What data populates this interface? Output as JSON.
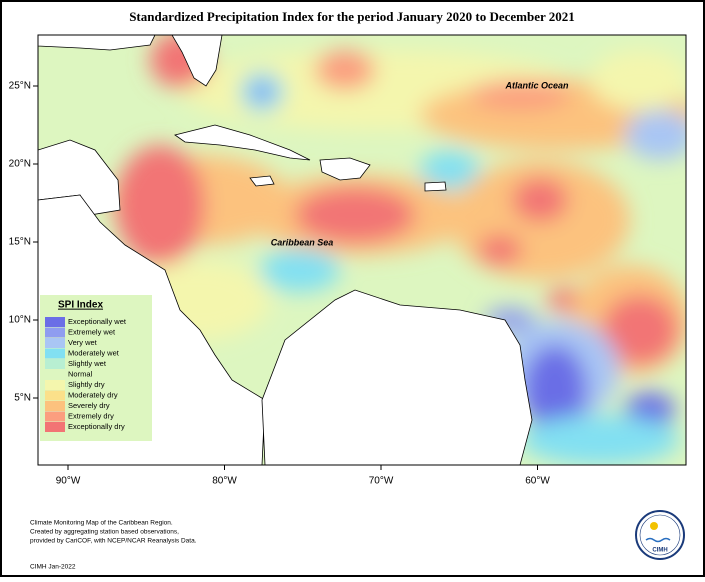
{
  "title": "Standardized Precipitation Index for the period January 2020 to December 2021",
  "map": {
    "longitude_labels": [
      "90°W",
      "80°W",
      "70°W",
      "60°W"
    ],
    "latitude_labels": [
      "25°N",
      "20°N",
      "15°N",
      "10°N",
      "5°N"
    ],
    "annotations": [
      "Caribbean Sea",
      "Atlantic Ocean"
    ]
  },
  "legend": {
    "title": "SPI Index",
    "entries": [
      {
        "label": "Exceptionally wet",
        "color": "#6b6ee6"
      },
      {
        "label": "Extremely wet",
        "color": "#8f9df0"
      },
      {
        "label": "Very wet",
        "color": "#a9c6f4"
      },
      {
        "label": "Moderately wet",
        "color": "#82e0f2"
      },
      {
        "label": "Slightly wet",
        "color": "#b8efd2"
      },
      {
        "label": "Normal",
        "color": "#ddf6c0"
      },
      {
        "label": "Slightly dry",
        "color": "#f4f6ad"
      },
      {
        "label": "Moderately dry",
        "color": "#fbe08a"
      },
      {
        "label": "Severely dry",
        "color": "#fcc27e"
      },
      {
        "label": "Extremely dry",
        "color": "#fb9e7f"
      },
      {
        "label": "Exceptionally dry",
        "color": "#f27474"
      }
    ]
  },
  "footer": {
    "credits": [
      "Climate Monitoring Map of the Caribbean Region.",
      "Created by aggregating station based observations,",
      "provided by CariCOF, with NCEP/NCAR Reanalysis Data."
    ],
    "date": "CIMH Jan-2022"
  },
  "logo": {
    "text": "CIMH"
  }
}
